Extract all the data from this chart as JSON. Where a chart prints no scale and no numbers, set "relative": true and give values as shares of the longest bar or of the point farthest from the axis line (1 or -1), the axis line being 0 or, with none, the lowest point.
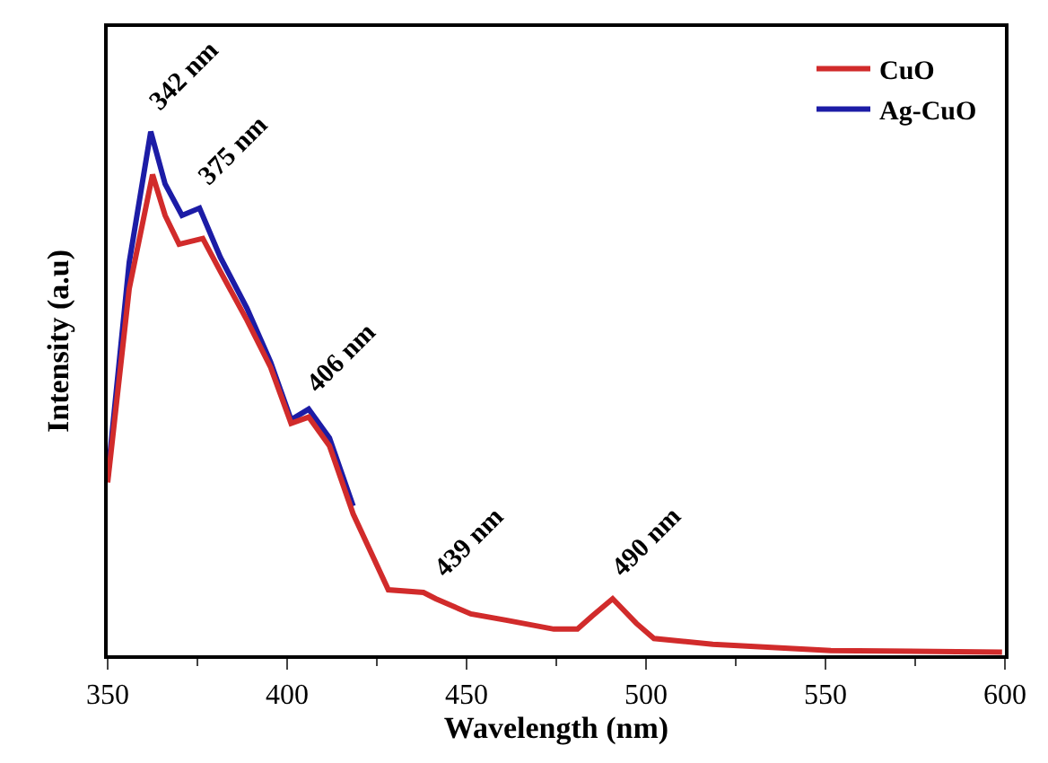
{
  "chart_data": {
    "type": "line",
    "relative": true,
    "xlabel": "Wavelength (nm)",
    "ylabel": "Intensity (a.u)",
    "xlim": [
      350,
      600
    ],
    "xticks": [
      350,
      400,
      450,
      500,
      550,
      600
    ],
    "legend": "top right",
    "marker": "none",
    "line_style": "solid",
    "series": [
      {
        "name": "CuO",
        "color": "#d12b2b",
        "x": [
          350,
          356,
          362.5,
          366,
          369.9,
          376.5,
          381.4,
          388.8,
          395.4,
          401.1,
          406,
          411.8,
          418.4,
          428.2,
          438,
          441.4,
          451.2,
          461,
          474.3,
          480.9,
          485,
          490.7,
          497.3,
          502.2,
          518.6,
          551.5,
          599.2
        ],
        "values": [
          0.33,
          0.7,
          0.918,
          0.84,
          0.785,
          0.796,
          0.733,
          0.64,
          0.55,
          0.443,
          0.455,
          0.4,
          0.27,
          0.125,
          0.12,
          0.108,
          0.079,
          0.067,
          0.05,
          0.05,
          0.075,
          0.108,
          0.061,
          0.032,
          0.021,
          0.009,
          0.006
        ]
      },
      {
        "name": "Ag-CuO",
        "color": "#1c1ca6",
        "x": [
          350,
          356,
          362,
          366,
          370.7,
          375.6,
          381.4,
          388.8,
          395.4,
          401.1,
          406,
          411.8,
          418.4
        ],
        "values": [
          0.34,
          0.75,
          1.0,
          0.9,
          0.84,
          0.854,
          0.76,
          0.663,
          0.56,
          0.45,
          0.47,
          0.415,
          0.285
        ]
      }
    ],
    "annotations": [
      {
        "text": "342 nm",
        "x": 362,
        "y": 1.0
      },
      {
        "text": "375 nm",
        "x": 375.6,
        "y": 0.854
      },
      {
        "text": "406 nm",
        "x": 406,
        "y": 0.46
      },
      {
        "text": "439 nm",
        "x": 441.4,
        "y": 0.108
      },
      {
        "text": "490 nm",
        "x": 490.7,
        "y": 0.108
      }
    ]
  }
}
